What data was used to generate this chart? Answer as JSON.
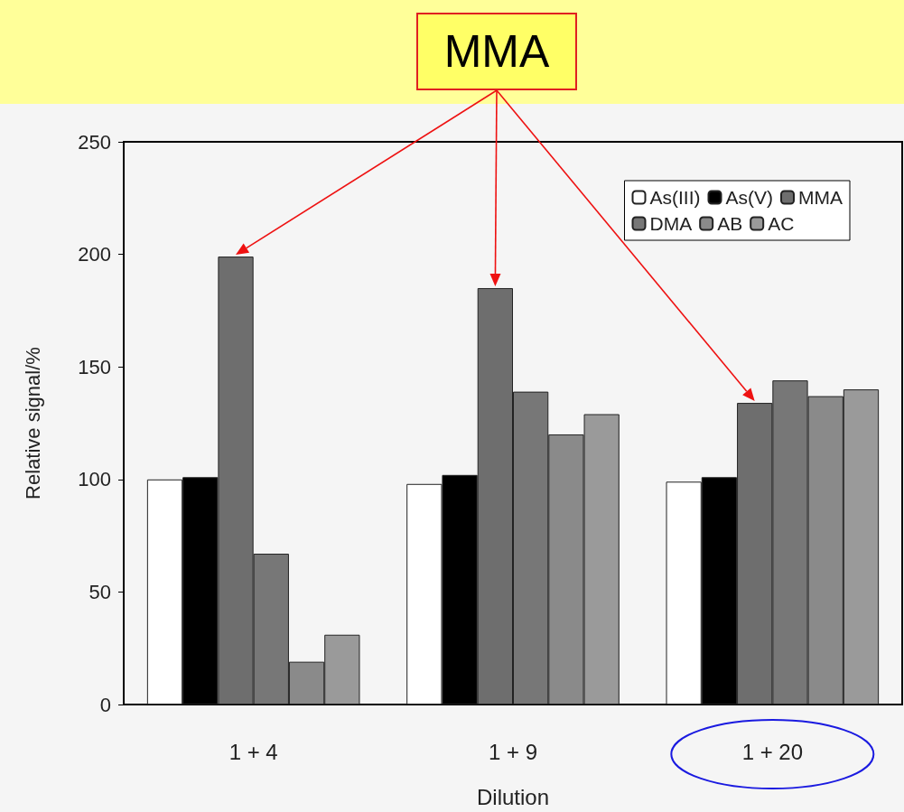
{
  "chart_data": {
    "type": "bar",
    "xlabel": "Dilution",
    "ylabel": "Relative signal/%",
    "categories": [
      "1 + 4",
      "1 + 9",
      "1 + 20"
    ],
    "series": [
      {
        "name": "As(III)",
        "color": "#ffffff",
        "values": [
          100,
          98,
          99
        ]
      },
      {
        "name": "As(V)",
        "color": "#000000",
        "values": [
          101,
          102,
          101
        ]
      },
      {
        "name": "MMA",
        "color": "#6e6e6e",
        "values": [
          199,
          185,
          134
        ]
      },
      {
        "name": "DMA",
        "color": "#777777",
        "values": [
          67,
          139,
          144
        ]
      },
      {
        "name": "AB",
        "color": "#8a8a8a",
        "values": [
          19,
          120,
          137
        ]
      },
      {
        "name": "AC",
        "color": "#9a9a9a",
        "values": [
          31,
          129,
          140
        ]
      }
    ],
    "ylim": [
      0,
      250
    ],
    "yticks": [
      0,
      50,
      100,
      150,
      200,
      250
    ],
    "grid": false,
    "legend": "top right",
    "annotations": [
      "MMA"
    ]
  }
}
